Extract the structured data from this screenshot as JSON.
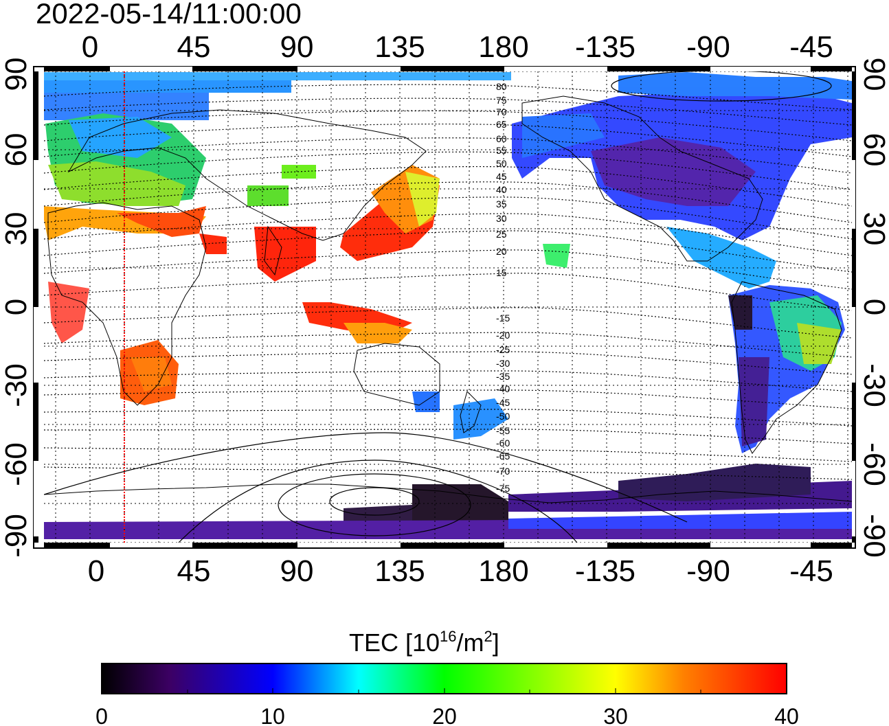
{
  "title": "2022-05-14/11:00:00",
  "map": {
    "lon_ticks_top": [
      "0",
      "45",
      "90",
      "135",
      "180",
      "-135",
      "-90",
      "-45"
    ],
    "lon_ticks_bottom": [
      "0",
      "45",
      "90",
      "135",
      "180",
      "-135",
      "-90",
      "-45"
    ],
    "lat_ticks_left": [
      "90",
      "60",
      "30",
      "0",
      "-30",
      "-60",
      "-90"
    ],
    "lat_ticks_right": [
      "90",
      "60",
      "30",
      "0",
      "-30",
      "-60",
      "-90"
    ],
    "lon_range": [
      -20,
      340
    ],
    "lat_range": [
      -90,
      90
    ],
    "grid": "dotted 15° graticule",
    "marker_longitude": 15,
    "marker_color": "#ff0000",
    "magnetic_latitude_labels_north": [
      "80",
      "75",
      "70",
      "65",
      "60",
      "55",
      "50",
      "45",
      "40",
      "35",
      "30",
      "25",
      "20",
      "15"
    ],
    "magnetic_latitude_labels_south": [
      "-15",
      "-20",
      "-25",
      "-30",
      "-35",
      "-40",
      "-45",
      "-50",
      "-55",
      "-60",
      "-65",
      "-70",
      "-75"
    ]
  },
  "colorbar": {
    "label_main": "TEC  [10",
    "label_sup1": "16",
    "label_mid": "/m",
    "label_sup2": "2",
    "label_end": "]",
    "ticks": [
      "0",
      "10",
      "20",
      "30",
      "40"
    ],
    "range": [
      0,
      40
    ],
    "colors": [
      "#000000",
      "#3c0064",
      "#0000ff",
      "#00ffff",
      "#00ff00",
      "#ffff00",
      "#ff8000",
      "#ff0000"
    ]
  }
}
